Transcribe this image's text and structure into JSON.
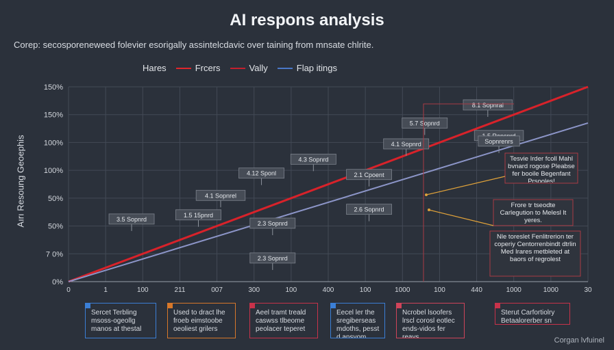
{
  "title": "AI respons analysis",
  "subtitle": "Corep: secosporeneweed folevier esorigally assintelcdavic over taining from mnsate chlrite.",
  "legend": {
    "label": "Hares",
    "items": [
      {
        "name": "Frcers",
        "color": "#e0262b"
      },
      {
        "name": "Vally",
        "color": "#c51f2d"
      },
      {
        "name": "Flap itings",
        "color": "#4a78c8"
      }
    ]
  },
  "chart_data": {
    "type": "line",
    "title": "AI respons analysis",
    "ylabel": "Aırı Resoung Geoephis",
    "xlabel": "",
    "y_ticks": [
      "0%",
      "7 0%",
      "50%",
      "50%",
      "100%",
      "100%",
      "150%",
      "150%"
    ],
    "x_ticks": [
      "0",
      "1",
      "100",
      "211",
      "007",
      "300",
      "100",
      "400",
      "100",
      "1000",
      "100",
      "440",
      "1000",
      "1000",
      "30"
    ],
    "grid": true,
    "series": [
      {
        "name": "Frcers",
        "color": "#d8222a",
        "points": [
          [
            0,
            0
          ],
          [
            14,
            7
          ]
        ]
      },
      {
        "name": "Flap itings",
        "color": "#8c95c8",
        "points": [
          [
            0,
            0
          ],
          [
            14,
            5.7
          ]
        ]
      }
    ],
    "annotations": [
      {
        "text": "3.5 Sopnrd",
        "x": 1.7,
        "y": 2.25
      },
      {
        "text": "1.5 15pnrd",
        "x": 3.5,
        "y": 2.4
      },
      {
        "text": "4.1 Sopnrel",
        "x": 4.1,
        "y": 3.1
      },
      {
        "text": "4.12 Sponl",
        "x": 5.2,
        "y": 3.9
      },
      {
        "text": "2.3 Sopnrd",
        "x": 5.5,
        "y": 0.85
      },
      {
        "text": "2.3 Sopnrd",
        "x": 5.5,
        "y": 2.1
      },
      {
        "text": "4.3 Sopnrd",
        "x": 6.6,
        "y": 4.4
      },
      {
        "text": "2.1 Cpoent",
        "x": 8.1,
        "y": 3.85
      },
      {
        "text": "2.6 Sopnrd",
        "x": 8.1,
        "y": 2.6
      },
      {
        "text": "4.1 Sopnrd",
        "x": 9.1,
        "y": 4.95
      },
      {
        "text": "5.7 Sopnrd",
        "x": 9.6,
        "y": 5.7
      },
      {
        "text": "8.1 Sopnral",
        "x": 11.3,
        "y": 6.35
      },
      {
        "text": "1.5 Repsnrd",
        "x": 11.6,
        "y": 5.25
      },
      {
        "text": "Sopnrenrs",
        "x": 11.6,
        "y": 5.05
      }
    ]
  },
  "callouts": [
    {
      "text": "Tesvie Irder fcoll Mahl bvnard rogose Pleabse fer booile Begenfant Prsooles!"
    },
    {
      "text": "Frore tr tseodte Carlegution to Melesl lt yeres."
    },
    {
      "text": "Nle toreslet Fenlitrerion ter coperiy Centorrenbindt dtrlin Med Irares metbleted at baors of regrolest"
    }
  ],
  "footer_boxes": [
    {
      "text": "Sercet Terbling msoss-ogeollg manos at thestal",
      "color": "#3b7fd6"
    },
    {
      "text": "Used to dract lhe froeb eimstoobe oeoliest grilers",
      "color": "#d8782a"
    },
    {
      "text": "Aeel tramt treald caswss tlbeome peolacer teperet",
      "color": "#c8324a"
    },
    {
      "text": "Eecel ler the sregiberseas mdoths, pesst d ansyom",
      "color": "#3b7fd6"
    },
    {
      "text": "Ncrobel lsoofers lrscl corosl eotlec ends-vidos fer reays",
      "color": "#d0445a"
    },
    {
      "text": "Sterut Carfortiolry Betaalorerber sn",
      "color": "#c8324a"
    }
  ],
  "brand": "Corgan lvfuinel"
}
